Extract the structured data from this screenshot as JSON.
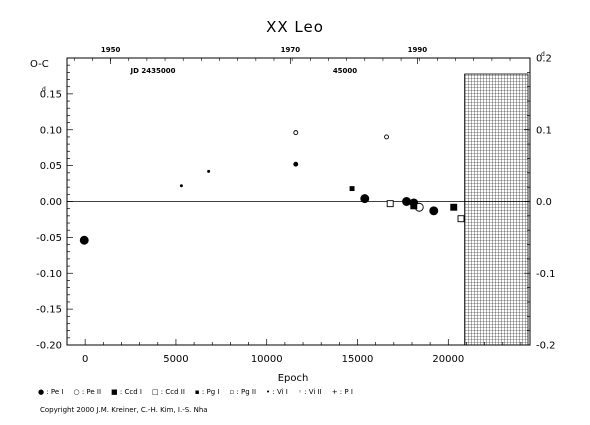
{
  "chart_data": {
    "type": "scatter",
    "title": "XX Leo",
    "xlabel": "Epoch",
    "ylabel": "O-C",
    "ylabel_d": "d",
    "x_range": [
      -1000,
      24500
    ],
    "y_range": [
      -0.2,
      0.2
    ],
    "x_ticks": [
      0,
      5000,
      10000,
      15000,
      20000
    ],
    "y_ticks": [
      0.15,
      0.1,
      0.05,
      0.0,
      -0.05,
      -0.1,
      -0.15,
      -0.2
    ],
    "y_tick_labels": [
      "0.15",
      "0.10",
      "0.05",
      "0.00",
      "-0.05",
      "-0.10",
      "-0.15",
      "-0.20"
    ],
    "right_ticks": [
      0.2,
      0.1,
      0.0,
      -0.1,
      -0.2
    ],
    "right_tick_labels": [
      "0.2",
      "0.1",
      "0.0",
      "-0.1",
      "-0.2"
    ],
    "top_years": [
      1950,
      1970,
      1990
    ],
    "top_year_epochs": [
      1400,
      11300,
      18300
    ],
    "jd_labels": [
      "JD 2435000",
      "45000"
    ],
    "future_region_start": 20900,
    "legend": [
      "Pe I",
      "Pe II",
      "Ccd I",
      "Ccd II",
      "Pg I",
      "Pg II",
      "Vi I",
      "Vi II",
      "P I"
    ],
    "series": [
      {
        "name": "Pe I",
        "points": [
          [
            -50,
            -0.054
          ],
          [
            15400,
            0.004
          ],
          [
            17700,
            0.0
          ],
          [
            18100,
            -0.002
          ],
          [
            19200,
            -0.013
          ]
        ]
      },
      {
        "name": "Pe II",
        "points": [
          [
            18400,
            -0.008
          ]
        ]
      },
      {
        "name": "Ccd I",
        "points": [
          [
            18100,
            -0.006
          ],
          [
            20300,
            -0.008
          ]
        ]
      },
      {
        "name": "Ccd II",
        "points": [
          [
            16800,
            -0.003
          ],
          [
            20700,
            -0.024
          ]
        ]
      },
      {
        "name": "Pg I",
        "points": [
          [
            14700,
            0.018
          ]
        ]
      },
      {
        "name": "Vi I",
        "points": [
          [
            11600,
            0.052
          ]
        ]
      },
      {
        "name": "Vi II",
        "points": [
          [
            11600,
            0.096
          ],
          [
            16600,
            0.09
          ]
        ]
      },
      {
        "name": "P I",
        "points": [
          [
            5300,
            0.022
          ],
          [
            6800,
            0.042
          ]
        ]
      }
    ]
  },
  "copyright": "Copyright 2000 J.M. Kreiner, C.-H. Kim, I.-S. Nha"
}
